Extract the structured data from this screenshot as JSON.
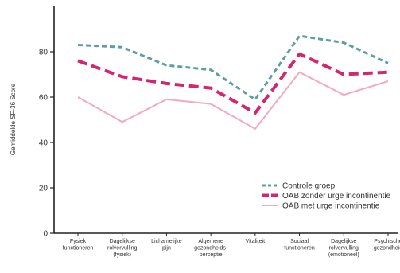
{
  "chart_data": {
    "type": "line",
    "title": "",
    "xlabel": "",
    "ylabel": "Gemiddelde SF-36 Score",
    "ylim": [
      0,
      100
    ],
    "yticks": [
      0,
      20,
      40,
      60,
      80
    ],
    "categories": [
      [
        "Fysiek",
        "functioneren"
      ],
      [
        "Dagelijkse",
        "rolvervulling",
        "(fysiek)"
      ],
      [
        "Lichamelijke",
        "pijn"
      ],
      [
        "Algemene",
        "gezondheids-",
        "perceptie"
      ],
      [
        "Vitaliteit"
      ],
      [
        "Sociaal",
        "functioneren"
      ],
      [
        "Dagelijkse",
        "rolvervulling",
        "(emotioneel)"
      ],
      [
        "Psychische",
        "gezondheid"
      ]
    ],
    "series": [
      {
        "name": "Controle groep",
        "values": [
          83,
          82,
          74,
          72,
          59,
          87,
          84,
          75
        ],
        "color": "#5f9ea0",
        "style": "dotted"
      },
      {
        "name": "OAB zonder urge incontinentie",
        "values": [
          76,
          69,
          66,
          64,
          53,
          79,
          70,
          71
        ],
        "color": "#d6246e",
        "style": "dashed"
      },
      {
        "name": "OAB met urge incontinentie",
        "values": [
          60,
          49,
          59,
          57,
          46,
          71,
          61,
          67
        ],
        "color": "#f4a9c0",
        "style": "solid"
      }
    ],
    "grid": false,
    "legend_position": "bottom-right"
  }
}
